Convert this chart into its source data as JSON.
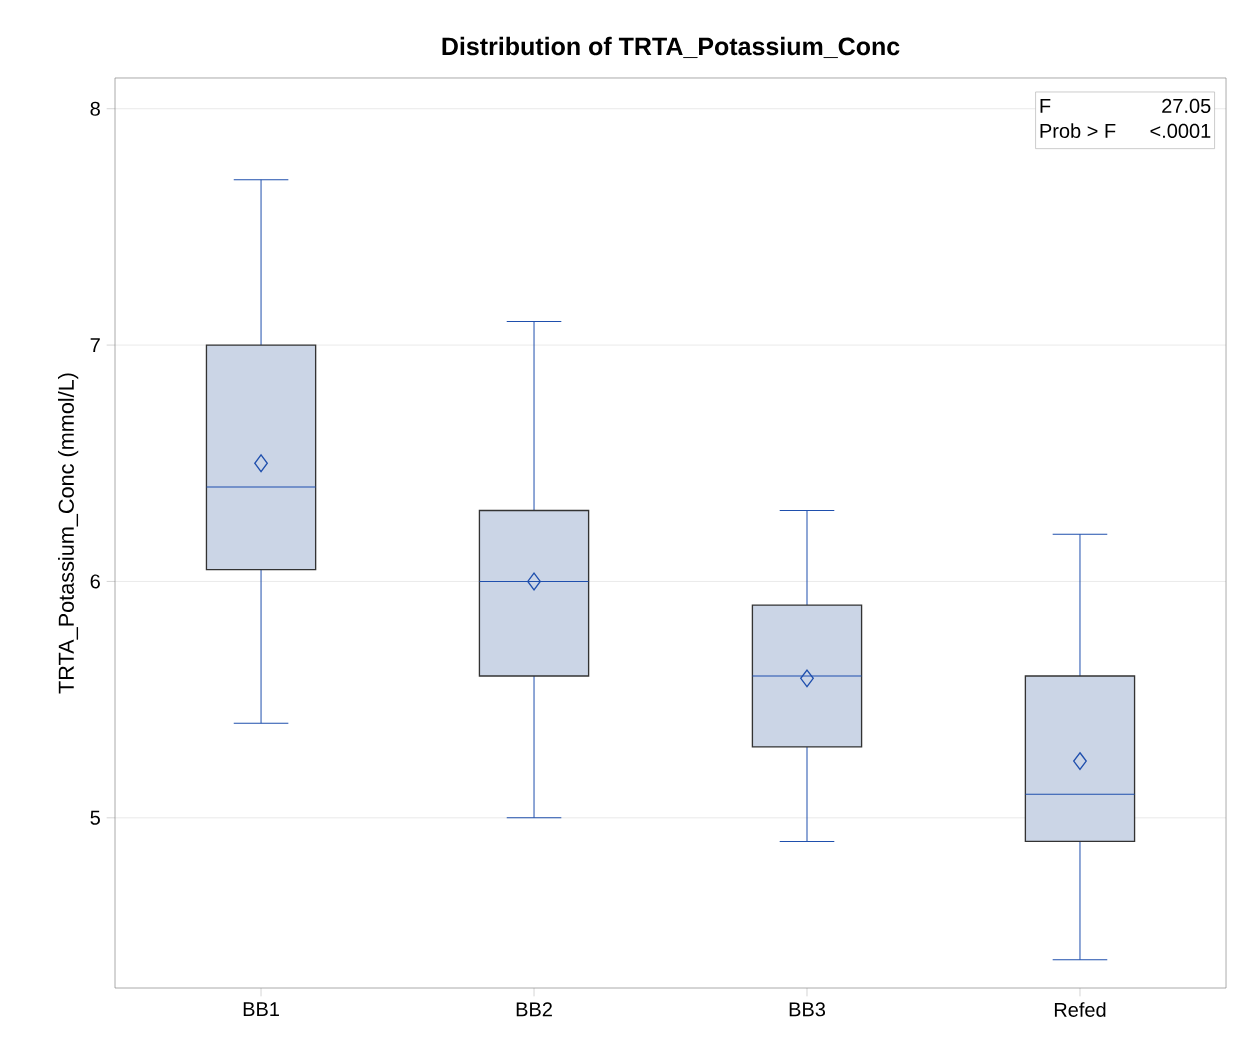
{
  "chart_data": {
    "type": "box",
    "title": "Distribution of TRTA_Potassium_Conc",
    "ylabel": "TRTA_Potassium_Conc    (mmol/L)",
    "categories": [
      "BB1",
      "BB2",
      "BB3",
      "Refed"
    ],
    "boxes": [
      {
        "low": 5.4,
        "q1": 6.05,
        "median": 6.4,
        "q3": 7.0,
        "high": 7.7,
        "mean": 6.5
      },
      {
        "low": 5.0,
        "q1": 5.6,
        "median": 6.0,
        "q3": 6.3,
        "high": 7.1,
        "mean": 6.0
      },
      {
        "low": 4.9,
        "q1": 5.3,
        "median": 5.6,
        "q3": 5.9,
        "high": 6.3,
        "mean": 5.59
      },
      {
        "low": 4.4,
        "q1": 4.9,
        "median": 5.1,
        "q3": 5.6,
        "high": 6.2,
        "mean": 5.24
      }
    ],
    "color": "#cbd5e6",
    "ylim": [
      4.28,
      8.13
    ],
    "yticks": [
      5,
      6,
      7,
      8
    ],
    "grid": "y",
    "marker": "diamond",
    "annotations": [
      "F",
      "27.05",
      "Prob > F",
      "<.0001"
    ]
  }
}
